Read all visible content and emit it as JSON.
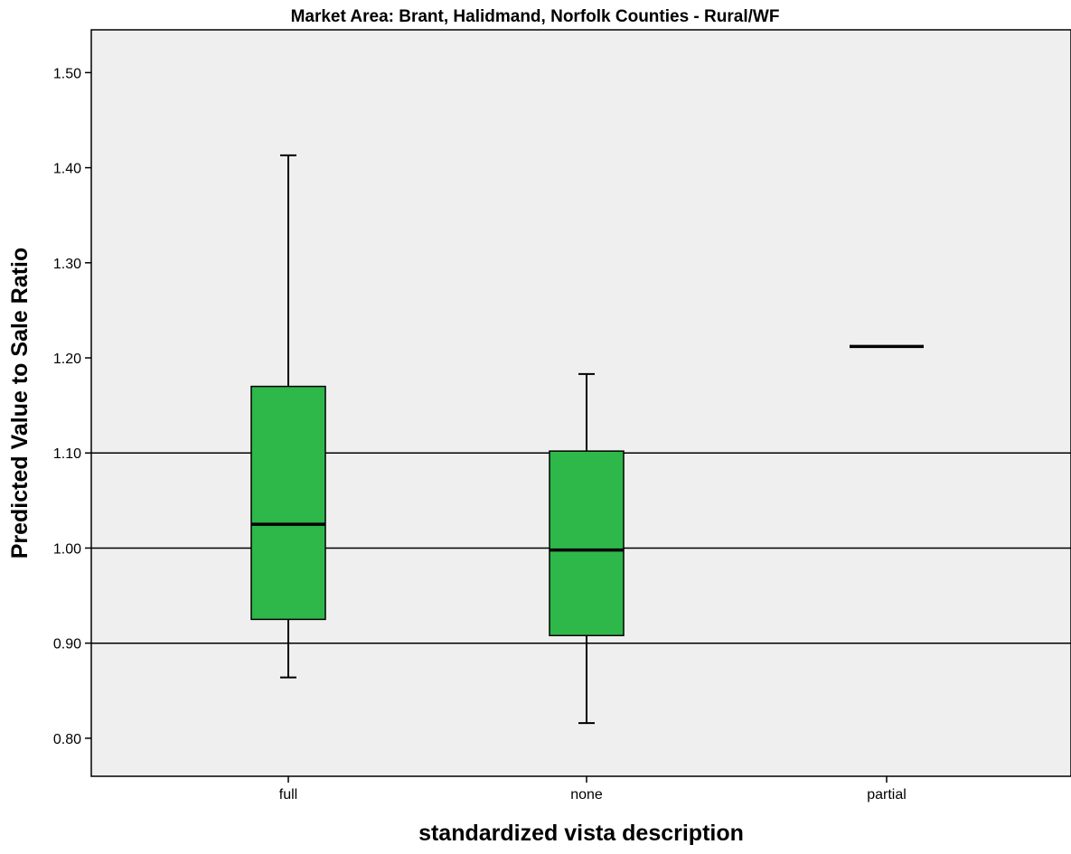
{
  "chart_data": {
    "type": "boxplot",
    "title": "Market Area: Brant, Halidmand, Norfolk Counties - Rural/WF",
    "xlabel": "standardized vista description",
    "ylabel": "Predicted Value to Sale Ratio",
    "ylim": [
      0.76,
      1.545
    ],
    "yticks": [
      "0.80",
      "0.90",
      "1.00",
      "1.10",
      "1.20",
      "1.30",
      "1.40",
      "1.50"
    ],
    "ytick_values": [
      0.8,
      0.9,
      1.0,
      1.1,
      1.2,
      1.3,
      1.4,
      1.5
    ],
    "reference_lines": [
      0.9,
      1.0,
      1.1
    ],
    "categories": [
      "full",
      "none",
      "partial"
    ],
    "boxes": [
      {
        "category": "full",
        "whisker_low": 0.864,
        "q1": 0.925,
        "median": 1.025,
        "q3": 1.17,
        "whisker_high": 1.413
      },
      {
        "category": "none",
        "whisker_low": 0.816,
        "q1": 0.908,
        "median": 0.998,
        "q3": 1.102,
        "whisker_high": 1.183
      },
      {
        "category": "partial",
        "median": 1.212
      }
    ],
    "box_color": "#2eb84a",
    "plot_background": "#efefef",
    "grid": false
  }
}
